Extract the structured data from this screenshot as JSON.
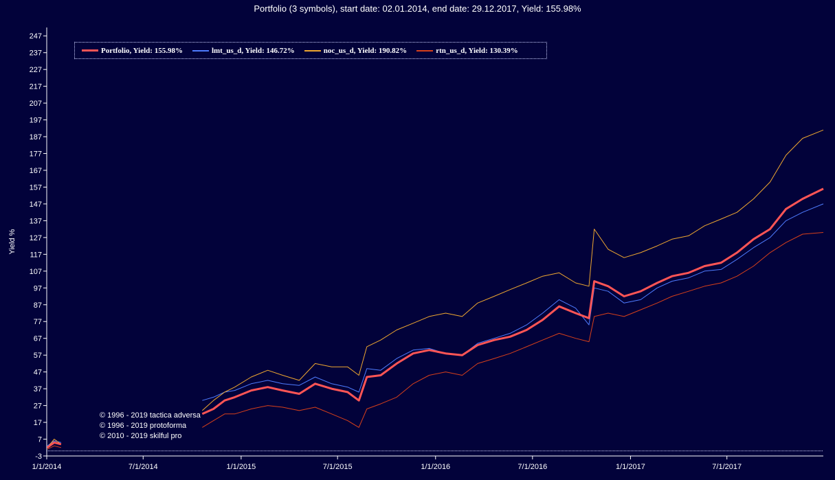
{
  "title": "Portfolio (3 symbols), start date: 02.01.2014, end date: 29.12.2017, Yield: 155.98%",
  "ylabel": "Yield %",
  "colors": {
    "background": "#02023a",
    "axis": "#ffffff",
    "baseline": "#d8d8ff"
  },
  "legend": [
    {
      "label": "Portfolio, Yield: 155.98%",
      "color": "#ff5555"
    },
    {
      "label": "lmt_us_d, Yield: 146.72%",
      "color": "#4f7cff"
    },
    {
      "label": "noc_us_d, Yield: 190.82%",
      "color": "#f0a830"
    },
    {
      "label": "rtn_us_d, Yield: 130.39%",
      "color": "#d8401a"
    }
  ],
  "credits": [
    "© 1996 - 2019 tactica adversa",
    "© 1996 - 2019 protoforma",
    "© 2010 - 2019 skilful pro"
  ],
  "chart_data": {
    "type": "line",
    "title": "Portfolio (3 symbols), start date: 02.01.2014, end date: 29.12.2017, Yield: 155.98%",
    "xlabel": "",
    "ylabel": "Yield %",
    "grid": false,
    "legend_position": "top-left",
    "x_range": [
      "2014-01-01",
      "2017-12-29"
    ],
    "ylim": [
      -3,
      252
    ],
    "y_ticks": [
      -3,
      7,
      17,
      27,
      37,
      47,
      57,
      67,
      77,
      87,
      97,
      107,
      117,
      127,
      137,
      147,
      157,
      167,
      177,
      187,
      197,
      207,
      217,
      227,
      237,
      247
    ],
    "x_ticks": [
      {
        "date": "2014-01-01",
        "label": "1/1/2014"
      },
      {
        "date": "2014-07-01",
        "label": "7/1/2014"
      },
      {
        "date": "2015-01-01",
        "label": "1/1/2015"
      },
      {
        "date": "2015-07-01",
        "label": "7/1/2015"
      },
      {
        "date": "2016-01-01",
        "label": "1/1/2016"
      },
      {
        "date": "2016-07-01",
        "label": "7/1/2016"
      },
      {
        "date": "2017-01-01",
        "label": "1/1/2017"
      },
      {
        "date": "2017-07-01",
        "label": "7/1/2017"
      }
    ],
    "series": [
      {
        "name": "Portfolio, Yield: 155.98%",
        "color": "#ff5555",
        "width": 3,
        "x": [
          "2014-01-02",
          "2014-01-15",
          "2014-01-28",
          "2014-10-20",
          "2014-11-10",
          "2014-12-01",
          "2014-12-20",
          "2015-01-20",
          "2015-02-20",
          "2015-03-20",
          "2015-04-20",
          "2015-05-20",
          "2015-06-20",
          "2015-07-20",
          "2015-08-10",
          "2015-08-25",
          "2015-09-20",
          "2015-10-20",
          "2015-11-20",
          "2015-12-20",
          "2016-01-20",
          "2016-02-20",
          "2016-03-20",
          "2016-04-20",
          "2016-05-20",
          "2016-06-20",
          "2016-07-20",
          "2016-08-20",
          "2016-09-20",
          "2016-10-15",
          "2016-10-25",
          "2016-11-20",
          "2016-12-20",
          "2017-01-20",
          "2017-02-20",
          "2017-03-20",
          "2017-04-20",
          "2017-05-20",
          "2017-06-20",
          "2017-07-20",
          "2017-08-20",
          "2017-09-20",
          "2017-10-20",
          "2017-11-20",
          "2017-12-29"
        ],
        "y": [
          2,
          5,
          4,
          22,
          25,
          30,
          32,
          36,
          38,
          36,
          34,
          40,
          37,
          35,
          30,
          44,
          45,
          52,
          58,
          60,
          58,
          57,
          63,
          66,
          68,
          72,
          78,
          86,
          82,
          79,
          101,
          98,
          92,
          95,
          100,
          104,
          106,
          110,
          112,
          118,
          126,
          132,
          144,
          150,
          156
        ]
      },
      {
        "name": "lmt_us_d, Yield: 146.72%",
        "color": "#4f7cff",
        "width": 1,
        "x": [
          "2014-01-02",
          "2014-01-15",
          "2014-01-28",
          "2014-10-20",
          "2014-11-10",
          "2014-12-01",
          "2014-12-20",
          "2015-01-20",
          "2015-02-20",
          "2015-03-20",
          "2015-04-20",
          "2015-05-20",
          "2015-06-20",
          "2015-07-20",
          "2015-08-10",
          "2015-08-25",
          "2015-09-20",
          "2015-10-20",
          "2015-11-20",
          "2015-12-20",
          "2016-01-20",
          "2016-02-20",
          "2016-03-20",
          "2016-04-20",
          "2016-05-20",
          "2016-06-20",
          "2016-07-20",
          "2016-08-20",
          "2016-09-20",
          "2016-10-15",
          "2016-10-25",
          "2016-11-20",
          "2016-12-20",
          "2017-01-20",
          "2017-02-20",
          "2017-03-20",
          "2017-04-20",
          "2017-05-20",
          "2017-06-20",
          "2017-07-20",
          "2017-08-20",
          "2017-09-20",
          "2017-10-20",
          "2017-11-20",
          "2017-12-29"
        ],
        "y": [
          3,
          6,
          5,
          30,
          32,
          35,
          36,
          40,
          42,
          40,
          39,
          44,
          40,
          38,
          35,
          49,
          48,
          55,
          60,
          61,
          58,
          57,
          64,
          67,
          70,
          75,
          82,
          90,
          85,
          75,
          97,
          95,
          88,
          90,
          97,
          101,
          103,
          107,
          108,
          114,
          121,
          127,
          137,
          142,
          147
        ]
      },
      {
        "name": "noc_us_d, Yield: 190.82%",
        "color": "#f0a830",
        "width": 1,
        "x": [
          "2014-01-02",
          "2014-01-15",
          "2014-01-28",
          "2014-10-20",
          "2014-11-10",
          "2014-12-01",
          "2014-12-20",
          "2015-01-20",
          "2015-02-20",
          "2015-03-20",
          "2015-04-20",
          "2015-05-20",
          "2015-06-20",
          "2015-07-20",
          "2015-08-10",
          "2015-08-25",
          "2015-09-20",
          "2015-10-20",
          "2015-11-20",
          "2015-12-20",
          "2016-01-20",
          "2016-02-20",
          "2016-03-20",
          "2016-04-20",
          "2016-05-20",
          "2016-06-20",
          "2016-07-20",
          "2016-08-20",
          "2016-09-20",
          "2016-10-15",
          "2016-10-25",
          "2016-11-20",
          "2016-12-20",
          "2017-01-20",
          "2017-02-20",
          "2017-03-20",
          "2017-04-20",
          "2017-05-20",
          "2017-06-20",
          "2017-07-20",
          "2017-08-20",
          "2017-09-20",
          "2017-10-20",
          "2017-11-20",
          "2017-12-29"
        ],
        "y": [
          2,
          7,
          4,
          24,
          30,
          35,
          38,
          44,
          48,
          45,
          42,
          52,
          50,
          50,
          45,
          62,
          66,
          72,
          76,
          80,
          82,
          80,
          88,
          92,
          96,
          100,
          104,
          106,
          100,
          98,
          132,
          120,
          115,
          118,
          122,
          126,
          128,
          134,
          138,
          142,
          150,
          160,
          176,
          186,
          191
        ]
      },
      {
        "name": "rtn_us_d, Yield: 130.39%",
        "color": "#d8401a",
        "width": 1,
        "x": [
          "2014-01-02",
          "2014-01-15",
          "2014-01-28",
          "2014-10-20",
          "2014-11-10",
          "2014-12-01",
          "2014-12-20",
          "2015-01-20",
          "2015-02-20",
          "2015-03-20",
          "2015-04-20",
          "2015-05-20",
          "2015-06-20",
          "2015-07-20",
          "2015-08-10",
          "2015-08-25",
          "2015-09-20",
          "2015-10-20",
          "2015-11-20",
          "2015-12-20",
          "2016-01-20",
          "2016-02-20",
          "2016-03-20",
          "2016-04-20",
          "2016-05-20",
          "2016-06-20",
          "2016-07-20",
          "2016-08-20",
          "2016-09-20",
          "2016-10-15",
          "2016-10-25",
          "2016-11-20",
          "2016-12-20",
          "2017-01-20",
          "2017-02-20",
          "2017-03-20",
          "2017-04-20",
          "2017-05-20",
          "2017-06-20",
          "2017-07-20",
          "2017-08-20",
          "2017-09-20",
          "2017-10-20",
          "2017-11-20",
          "2017-12-29"
        ],
        "y": [
          1,
          3,
          2,
          14,
          18,
          22,
          22,
          25,
          27,
          26,
          24,
          26,
          22,
          18,
          14,
          25,
          28,
          32,
          40,
          45,
          47,
          45,
          52,
          55,
          58,
          62,
          66,
          70,
          67,
          65,
          80,
          82,
          80,
          84,
          88,
          92,
          95,
          98,
          100,
          104,
          110,
          118,
          124,
          129,
          130
        ]
      }
    ]
  }
}
